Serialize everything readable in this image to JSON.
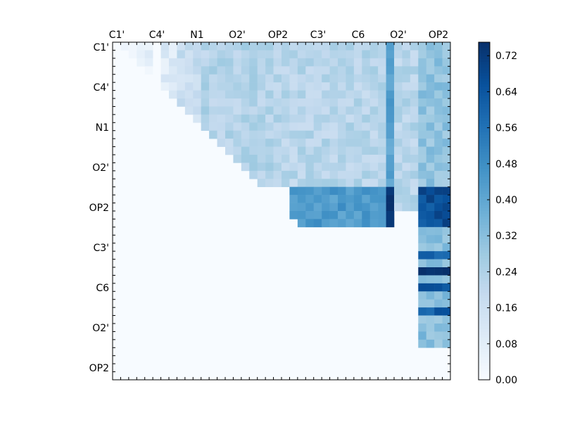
{
  "chart_data": {
    "type": "heatmap",
    "title": "",
    "xlabel": "",
    "ylabel": "",
    "x_tick_labels": [
      "C1'",
      "C4'",
      "N1",
      "O2'",
      "OP2",
      "C3'",
      "C6",
      "O2'",
      "OP2"
    ],
    "y_tick_labels": [
      "C1'",
      "C4'",
      "N1",
      "O2'",
      "OP2",
      "C3'",
      "C6",
      "O2'",
      "OP2"
    ],
    "colorbar": {
      "min": 0.0,
      "max": 0.75,
      "ticks": [
        "0.00",
        "0.08",
        "0.16",
        "0.24",
        "0.32",
        "0.40",
        "0.48",
        "0.56",
        "0.64",
        "0.72"
      ],
      "colormap": "Blues"
    },
    "n_cells": 42,
    "upper_triangle_only": true,
    "blocks": [
      {
        "rows": [
          0,
          4
        ],
        "cols": [
          1,
          4
        ],
        "value": 0.07
      },
      {
        "rows": [
          0,
          8
        ],
        "cols": [
          6,
          7
        ],
        "value": 0.1
      },
      {
        "rows": [
          0,
          12
        ],
        "cols": [
          8,
          10
        ],
        "value": 0.17
      },
      {
        "rows": [
          0,
          17
        ],
        "cols": [
          11,
          20
        ],
        "value": 0.23
      },
      {
        "rows": [
          0,
          17
        ],
        "cols": [
          21,
          33
        ],
        "value": 0.22
      },
      {
        "rows": [
          0,
          20
        ],
        "cols": [
          34,
          34
        ],
        "value": 0.42
      },
      {
        "rows": [
          0,
          20
        ],
        "cols": [
          35,
          37
        ],
        "value": 0.22
      },
      {
        "rows": [
          0,
          20
        ],
        "cols": [
          38,
          41
        ],
        "value": 0.3
      },
      {
        "rows": [
          18,
          22
        ],
        "cols": [
          22,
          33
        ],
        "value": 0.44
      },
      {
        "rows": [
          18,
          22
        ],
        "cols": [
          34,
          34
        ],
        "value": 0.72
      },
      {
        "rows": [
          18,
          22
        ],
        "cols": [
          38,
          41
        ],
        "value": 0.66
      },
      {
        "rows": [
          23,
          37
        ],
        "cols": [
          38,
          41
        ],
        "value": 0.32
      }
    ],
    "highlights": [
      {
        "row": 26,
        "col_start": 38,
        "col_end": 41,
        "value": 0.58
      },
      {
        "row": 28,
        "col_start": 38,
        "col_end": 41,
        "value": 0.72
      },
      {
        "row": 30,
        "col_start": 38,
        "col_end": 41,
        "value": 0.64
      },
      {
        "row": 33,
        "col_start": 38,
        "col_end": 41,
        "value": 0.62
      }
    ]
  },
  "colors": {
    "low": "#f7fbff",
    "high": "#08306b"
  }
}
